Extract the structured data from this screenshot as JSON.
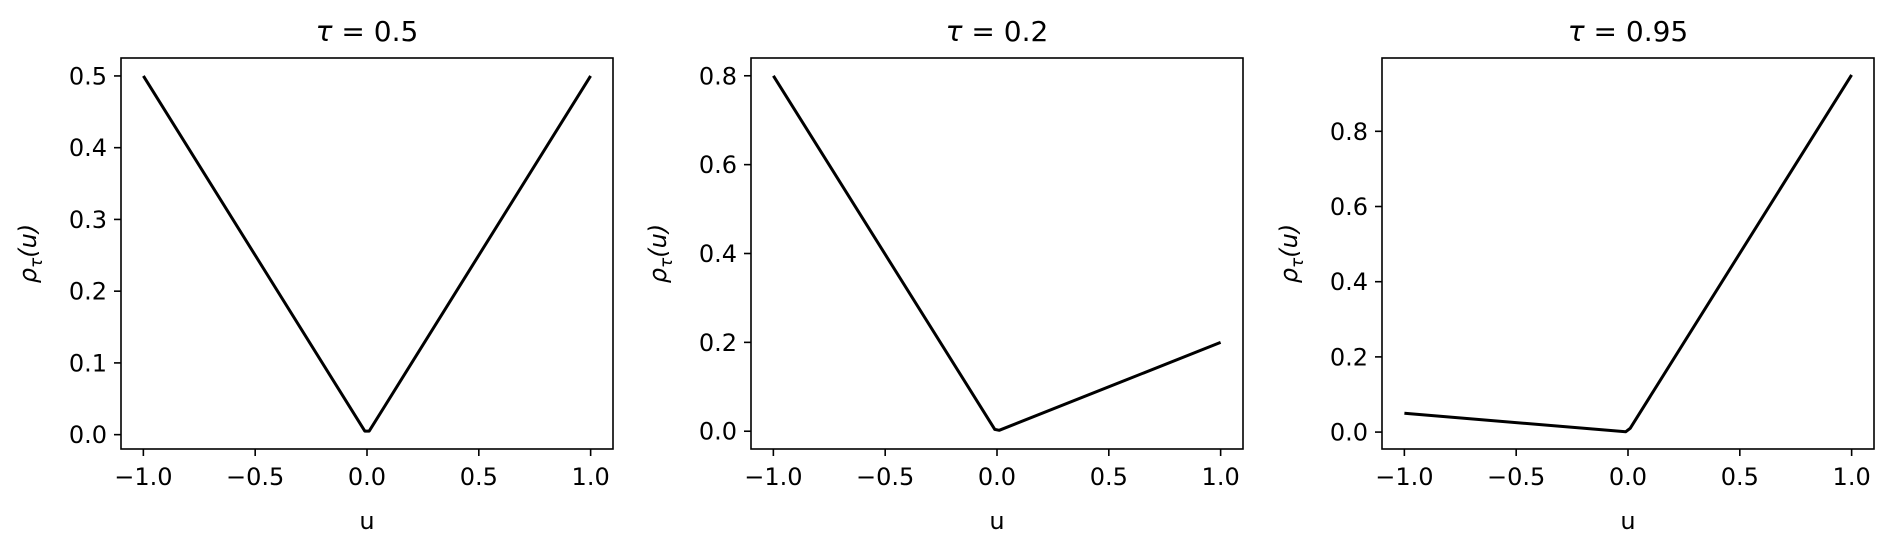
{
  "chart_data": [
    {
      "type": "line",
      "title_symbol": "τ",
      "title_rest": " = 0.5",
      "xlabel": "u",
      "ylabel_main": "ρ",
      "ylabel_sub": "τ",
      "ylabel_rest": "(u)",
      "xlim": [
        -1.1,
        1.1
      ],
      "ylim": [
        -0.02,
        0.525
      ],
      "xticks": [
        -1.0,
        -0.5,
        0.0,
        0.5,
        1.0
      ],
      "xtick_labels": [
        "−1.0",
        "−0.5",
        "0.0",
        "0.5",
        "1.0"
      ],
      "yticks": [
        0.0,
        0.1,
        0.2,
        0.3,
        0.4,
        0.5
      ],
      "ytick_labels": [
        "0.0",
        "0.1",
        "0.2",
        "0.3",
        "0.4",
        "0.5"
      ],
      "series": [
        {
          "x": [
            -1.0,
            -0.01,
            0.01,
            1.0
          ],
          "y": [
            0.5,
            0.005,
            0.005,
            0.5
          ],
          "color": "#000000"
        }
      ],
      "grid": false
    },
    {
      "type": "line",
      "title_symbol": "τ",
      "title_rest": " = 0.2",
      "xlabel": "u",
      "ylabel_main": "ρ",
      "ylabel_sub": "τ",
      "ylabel_rest": "(u)",
      "xlim": [
        -1.1,
        1.1
      ],
      "ylim": [
        -0.04,
        0.84
      ],
      "xticks": [
        -1.0,
        -0.5,
        0.0,
        0.5,
        1.0
      ],
      "xtick_labels": [
        "−1.0",
        "−0.5",
        "0.0",
        "0.5",
        "1.0"
      ],
      "yticks": [
        0.0,
        0.2,
        0.4,
        0.6,
        0.8
      ],
      "ytick_labels": [
        "0.0",
        "0.2",
        "0.4",
        "0.6",
        "0.8"
      ],
      "series": [
        {
          "x": [
            -1.0,
            -0.01,
            0.01,
            1.0
          ],
          "y": [
            0.8,
            0.004,
            0.002,
            0.2
          ],
          "color": "#000000"
        }
      ],
      "grid": false
    },
    {
      "type": "line",
      "title_symbol": "τ",
      "title_rest": " = 0.95",
      "xlabel": "u",
      "ylabel_main": "ρ",
      "ylabel_sub": "τ",
      "ylabel_rest": "(u)",
      "xlim": [
        -1.1,
        1.1
      ],
      "ylim": [
        -0.045,
        0.995
      ],
      "xticks": [
        -1.0,
        -0.5,
        0.0,
        0.5,
        1.0
      ],
      "xtick_labels": [
        "−1.0",
        "−0.5",
        "0.0",
        "0.5",
        "1.0"
      ],
      "yticks": [
        0.0,
        0.2,
        0.4,
        0.6,
        0.8
      ],
      "ytick_labels": [
        "0.0",
        "0.2",
        "0.4",
        "0.6",
        "0.8"
      ],
      "series": [
        {
          "x": [
            -1.0,
            -0.01,
            0.01,
            1.0
          ],
          "y": [
            0.05,
            0.001,
            0.01,
            0.95
          ],
          "color": "#000000"
        }
      ],
      "grid": false
    }
  ]
}
